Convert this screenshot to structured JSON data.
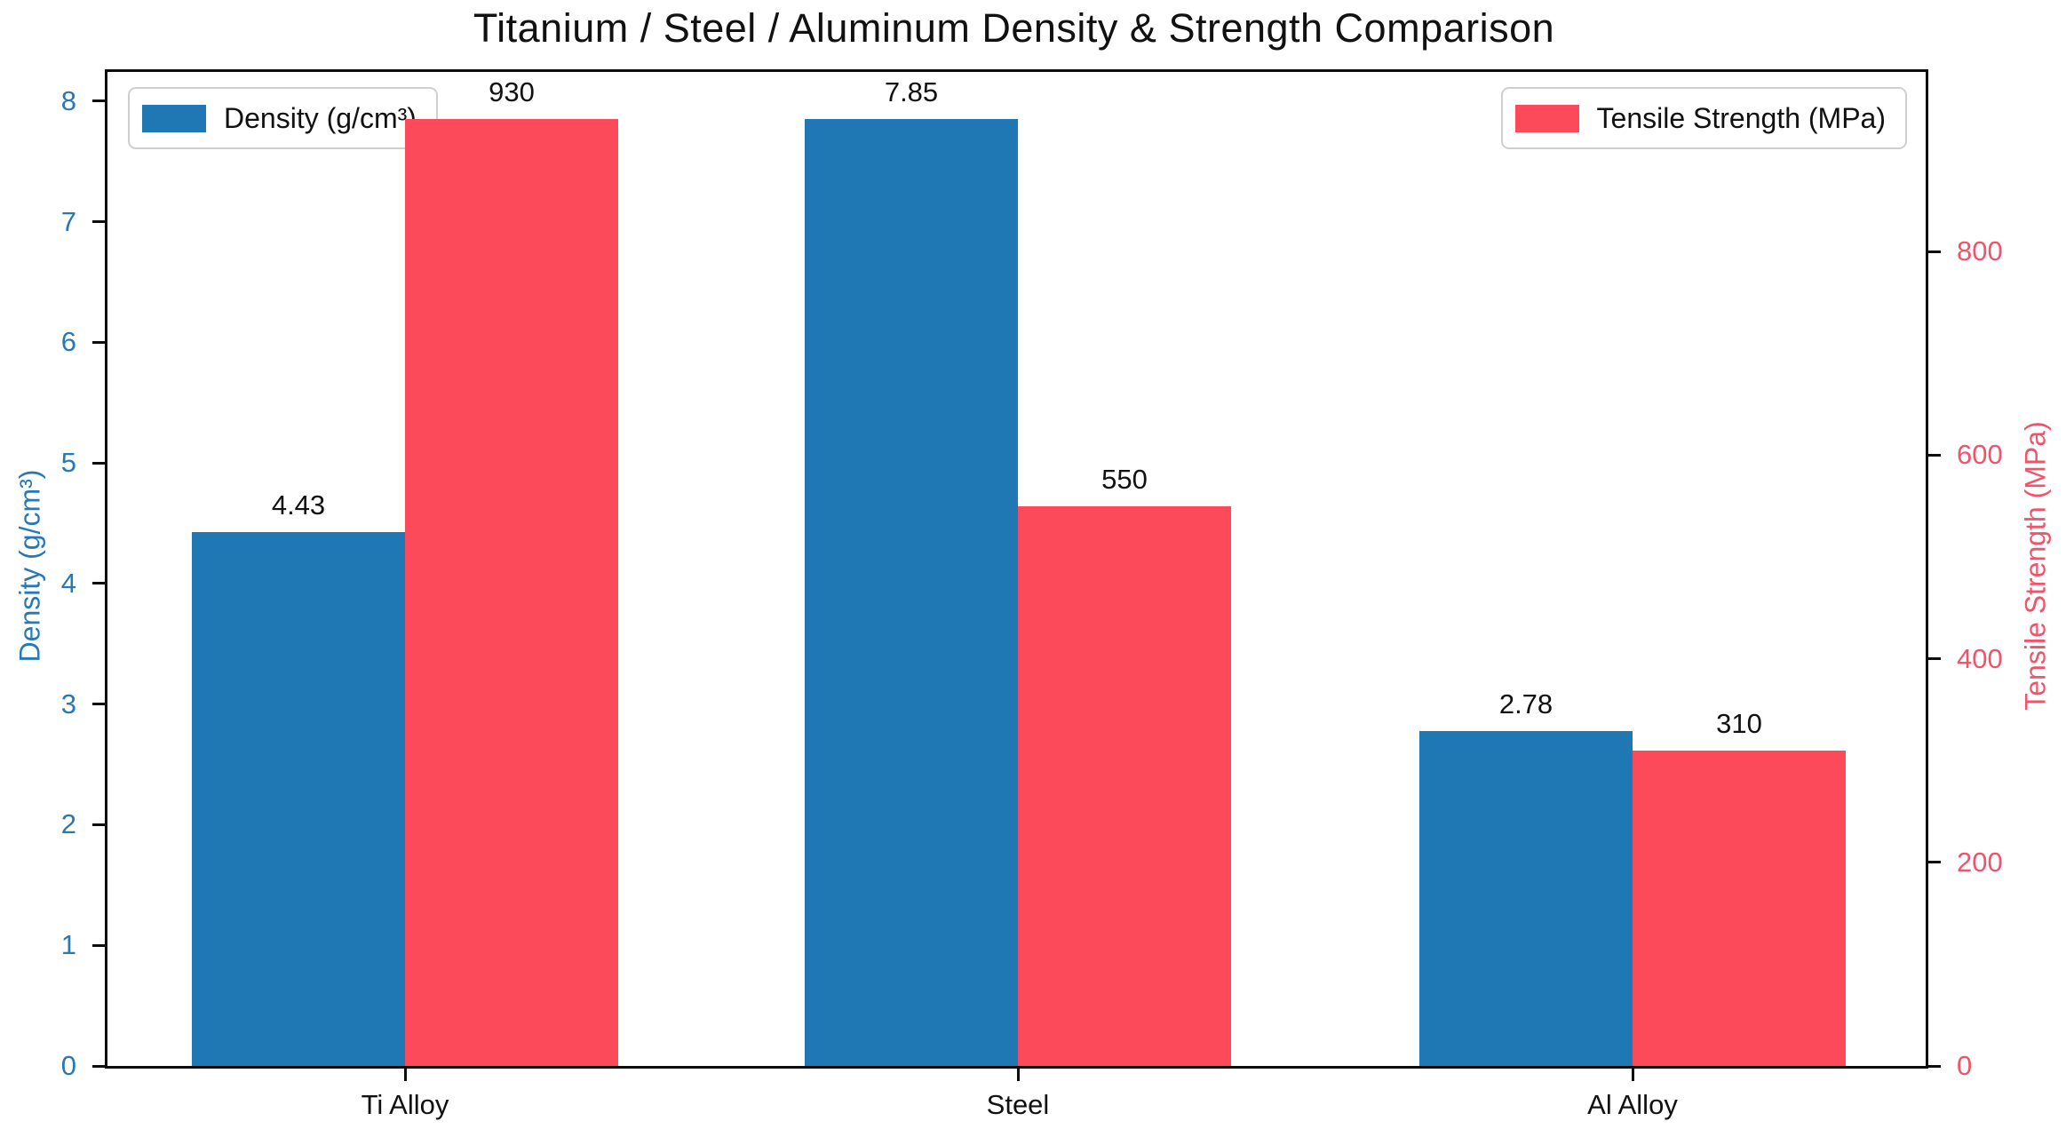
{
  "title": "Titanium / Steel / Aluminum Density & Strength Comparison",
  "chart_data": {
    "type": "bar",
    "title": "Titanium / Steel / Aluminum Density & Strength Comparison",
    "categories": [
      "Ti Alloy",
      "Steel",
      "Al Alloy"
    ],
    "series": [
      {
        "name": "Density (g/cm³)",
        "axis": "left",
        "values": [
          4.43,
          7.85,
          2.78
        ],
        "data_labels": [
          "4.43",
          "7.85",
          "2.78"
        ],
        "color": "#1F77B4"
      },
      {
        "name": "Tensile Strength (MPa)",
        "axis": "right",
        "values": [
          930,
          550,
          310
        ],
        "data_labels": [
          "930",
          "550",
          "310"
        ],
        "color": "#FC4A5A"
      }
    ],
    "left_axis": {
      "label": "Density (g/cm³)",
      "ticks": [
        0,
        1,
        2,
        3,
        4,
        5,
        6,
        7,
        8
      ],
      "tick_labels": [
        "0",
        "1",
        "2",
        "3",
        "4",
        "5",
        "6",
        "7",
        "8"
      ],
      "range": [
        0,
        8.2425
      ],
      "text_color": "#2878B5"
    },
    "right_axis": {
      "label": "Tensile Strength (MPa)",
      "ticks": [
        0,
        200,
        400,
        600,
        800
      ],
      "tick_labels": [
        "0",
        "200",
        "400",
        "600",
        "800"
      ],
      "range": [
        0,
        976.5
      ],
      "text_color": "#F0536A"
    },
    "legend": {
      "left": {
        "label": "Density (g/cm³)",
        "swatch_color": "#1F77B4",
        "position": "upper left"
      },
      "right": {
        "label": "Tensile Strength (MPa)",
        "swatch_color": "#FC4A5A",
        "position": "upper right"
      }
    },
    "grid": false,
    "background": "#ffffff"
  }
}
